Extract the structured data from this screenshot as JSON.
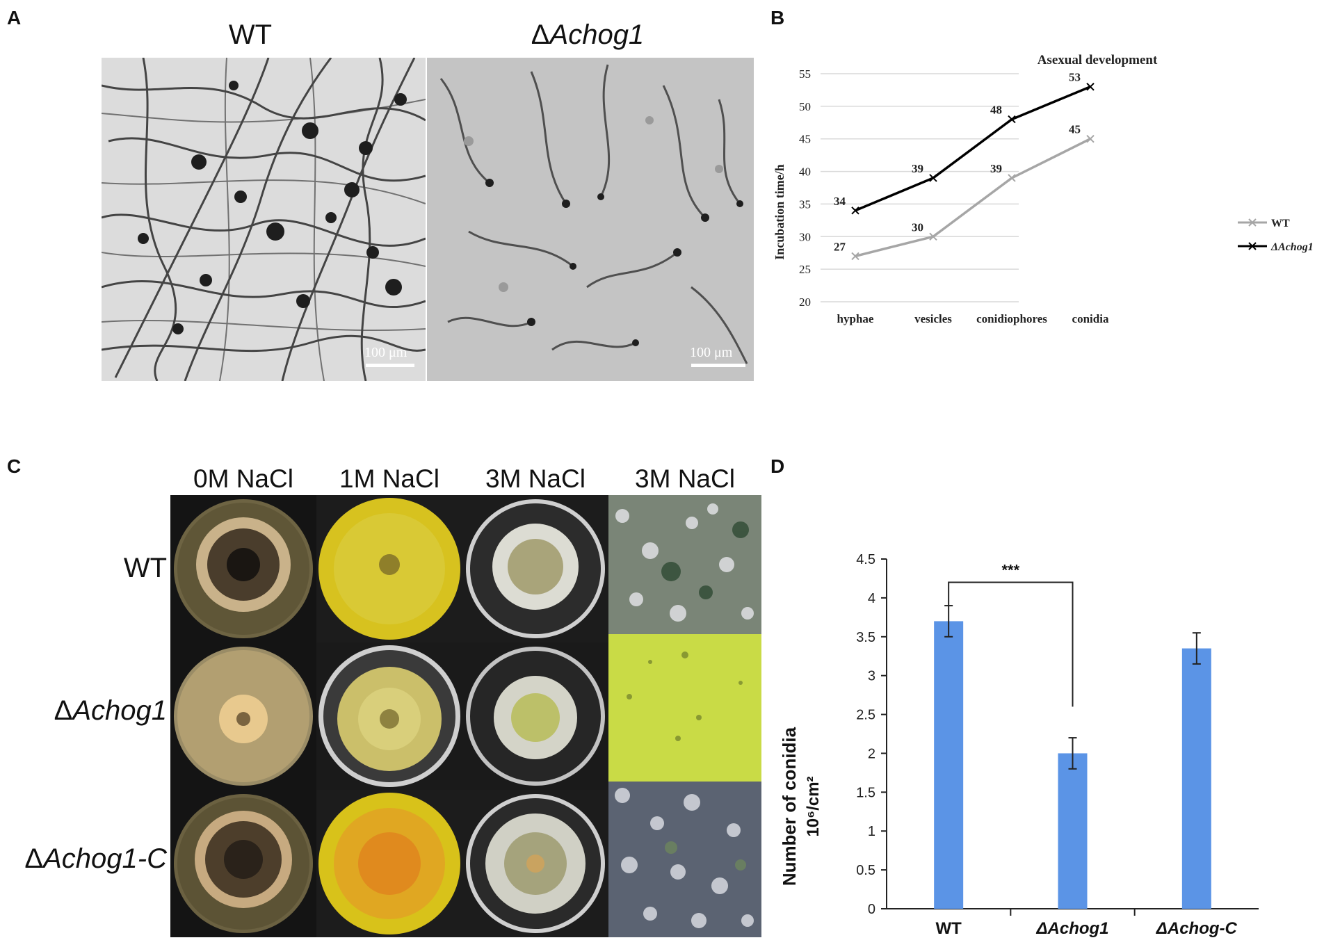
{
  "panels": {
    "a": "A",
    "b": "B",
    "c": "C",
    "d": "D"
  },
  "panel_a": {
    "wt_title": "WT",
    "mut_delta": "Δ",
    "mut_name": "Achog1",
    "scale_wt": "100 μm",
    "scale_mut": "100 μm"
  },
  "panel_c": {
    "columns": [
      "0M NaCl",
      "1M NaCl",
      "3M NaCl",
      "3M NaCl"
    ],
    "rows": [
      {
        "delta": "",
        "name": "WT"
      },
      {
        "delta": "Δ",
        "name": "Achog1"
      },
      {
        "delta": "Δ",
        "name": "Achog1-C"
      }
    ]
  },
  "chart_data": [
    {
      "type": "line",
      "title": "Asexual development",
      "ylabel": "Incubation time/h",
      "xlabel": "",
      "categories": [
        "hyphae",
        "vesicles",
        "conidiophores",
        "conidia"
      ],
      "ylim": [
        20,
        55
      ],
      "yticks": [
        20,
        25,
        30,
        35,
        40,
        45,
        50,
        55
      ],
      "grid": true,
      "legend_position": "right",
      "series": [
        {
          "name": "WT",
          "values": [
            27,
            30,
            39,
            45
          ],
          "color": "#a6a6a6",
          "marker": "x"
        },
        {
          "name": "ΔAchog1",
          "values": [
            34,
            39,
            48,
            53
          ],
          "color": "#000000",
          "marker": "x"
        }
      ],
      "data_labels": true
    },
    {
      "type": "bar",
      "title": "",
      "ylabel_line1": "Number of conidia",
      "ylabel_line2": "10⁶/cm²",
      "categories": [
        "WT",
        "ΔAchog1",
        "ΔAchog-C"
      ],
      "values": [
        3.7,
        2.0,
        3.35
      ],
      "errors": [
        0.2,
        0.2,
        0.2
      ],
      "ylim": [
        0,
        4.5
      ],
      "yticks": [
        0,
        0.5,
        1,
        1.5,
        2,
        2.5,
        3,
        3.5,
        4,
        4.5
      ],
      "color": "#5b94e6",
      "significance": {
        "between": [
          "WT",
          "ΔAchog1"
        ],
        "label": "***"
      }
    }
  ]
}
